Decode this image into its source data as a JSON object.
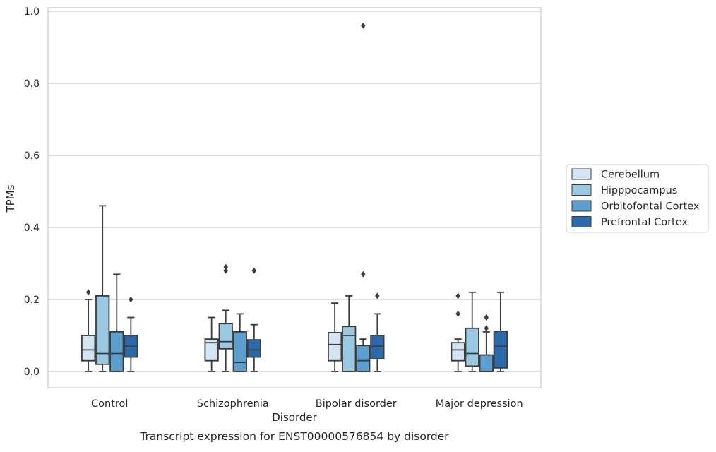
{
  "chart_data": {
    "type": "box",
    "title": "",
    "caption": "Transcript expression for ENST00000576854 by disorder",
    "xlabel": "Disorder",
    "ylabel": "TPMs",
    "ylim": [
      -0.045,
      1.01
    ],
    "yticks": [
      0.0,
      0.2,
      0.4,
      0.6,
      0.8,
      1.0
    ],
    "ytick_labels": [
      "0.0",
      "0.2",
      "0.4",
      "0.6",
      "0.8",
      "1.0"
    ],
    "grid": true,
    "legend_position": "right",
    "categories": [
      "Control",
      "Schizophrenia",
      "Bipolar disorder",
      "Major depression"
    ],
    "series": [
      {
        "name": "Cerebellum",
        "color": "#d3e4f3",
        "boxes": [
          {
            "min": 0.0,
            "q1": 0.03,
            "median": 0.06,
            "q3": 0.1,
            "max": 0.2,
            "outliers": [
              0.22
            ]
          },
          {
            "min": 0.0,
            "q1": 0.03,
            "median": 0.08,
            "q3": 0.09,
            "max": 0.15,
            "outliers": []
          },
          {
            "min": 0.0,
            "q1": 0.03,
            "median": 0.075,
            "q3": 0.108,
            "max": 0.19,
            "outliers": []
          },
          {
            "min": 0.0,
            "q1": 0.03,
            "median": 0.06,
            "q3": 0.08,
            "max": 0.09,
            "outliers": [
              0.16,
              0.21
            ]
          }
        ]
      },
      {
        "name": "Hipppocampus",
        "color": "#9ac8e0",
        "boxes": [
          {
            "min": 0.0,
            "q1": 0.02,
            "median": 0.05,
            "q3": 0.21,
            "max": 0.46,
            "outliers": []
          },
          {
            "min": 0.0,
            "q1": 0.063,
            "median": 0.083,
            "q3": 0.133,
            "max": 0.17,
            "outliers": [
              0.28,
              0.29
            ]
          },
          {
            "min": 0.0,
            "q1": 0.0,
            "median": 0.1,
            "q3": 0.125,
            "max": 0.21,
            "outliers": []
          },
          {
            "min": 0.0,
            "q1": 0.015,
            "median": 0.05,
            "q3": 0.12,
            "max": 0.22,
            "outliers": []
          }
        ]
      },
      {
        "name": "Orbitofontal Cortex",
        "color": "#5a9fcd",
        "boxes": [
          {
            "min": 0.0,
            "q1": 0.0,
            "median": 0.05,
            "q3": 0.11,
            "max": 0.27,
            "outliers": []
          },
          {
            "min": 0.0,
            "q1": 0.0,
            "median": 0.025,
            "q3": 0.11,
            "max": 0.16,
            "outliers": []
          },
          {
            "min": 0.0,
            "q1": 0.0,
            "median": 0.03,
            "q3": 0.072,
            "max": 0.09,
            "outliers": [
              0.27,
              0.96
            ]
          },
          {
            "min": 0.0,
            "q1": 0.0,
            "median": 0.0,
            "q3": 0.046,
            "max": 0.11,
            "outliers": [
              0.12,
              0.15
            ]
          }
        ]
      },
      {
        "name": "Prefrontal Cortex",
        "color": "#2b6aaa",
        "boxes": [
          {
            "min": 0.0,
            "q1": 0.04,
            "median": 0.07,
            "q3": 0.1,
            "max": 0.15,
            "outliers": [
              0.2
            ]
          },
          {
            "min": 0.0,
            "q1": 0.04,
            "median": 0.06,
            "q3": 0.088,
            "max": 0.13,
            "outliers": [
              0.28
            ]
          },
          {
            "min": 0.0,
            "q1": 0.035,
            "median": 0.07,
            "q3": 0.1,
            "max": 0.16,
            "outliers": [
              0.21
            ]
          },
          {
            "min": 0.0,
            "q1": 0.01,
            "median": 0.07,
            "q3": 0.112,
            "max": 0.22,
            "outliers": []
          }
        ]
      }
    ]
  }
}
